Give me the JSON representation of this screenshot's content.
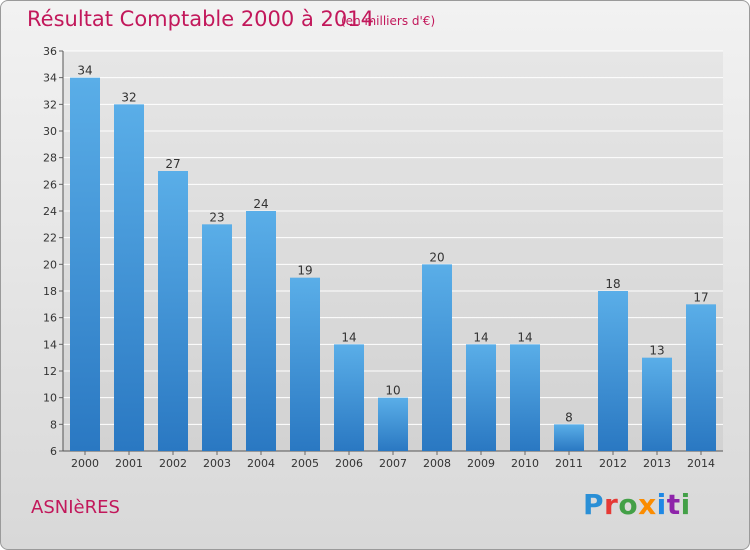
{
  "chart_data": {
    "type": "bar",
    "title": "Résultat Comptable 2000 à 2014",
    "subtitle": "(en milliers d'€)",
    "categories": [
      "2000",
      "2001",
      "2002",
      "2003",
      "2004",
      "2005",
      "2006",
      "2007",
      "2008",
      "2009",
      "2010",
      "2011",
      "2012",
      "2013",
      "2014"
    ],
    "values": [
      34,
      32,
      27,
      23,
      24,
      19,
      14,
      10,
      20,
      14,
      14,
      8,
      18,
      13,
      17
    ],
    "ylim": [
      6,
      36
    ],
    "yticks": [
      6,
      8,
      10,
      12,
      14,
      16,
      18,
      20,
      22,
      24,
      26,
      28,
      30,
      32,
      34,
      36
    ],
    "grid": true,
    "bar_color": "#3d8fd6",
    "xlabel": "",
    "ylabel": ""
  },
  "footer": {
    "town": "ASNIèRES",
    "logo_letters": [
      {
        "char": "P",
        "color": "#2a8fd6"
      },
      {
        "char": "r",
        "color": "#e53935"
      },
      {
        "char": "o",
        "color": "#43a047"
      },
      {
        "char": "x",
        "color": "#fb8c00"
      },
      {
        "char": "i",
        "color": "#1e88e5"
      },
      {
        "char": "t",
        "color": "#8e24aa"
      },
      {
        "char": "i",
        "color": "#43a047"
      }
    ]
  },
  "colors": {
    "title": "#c2185b",
    "plot_bg": "#dcdcdc"
  }
}
